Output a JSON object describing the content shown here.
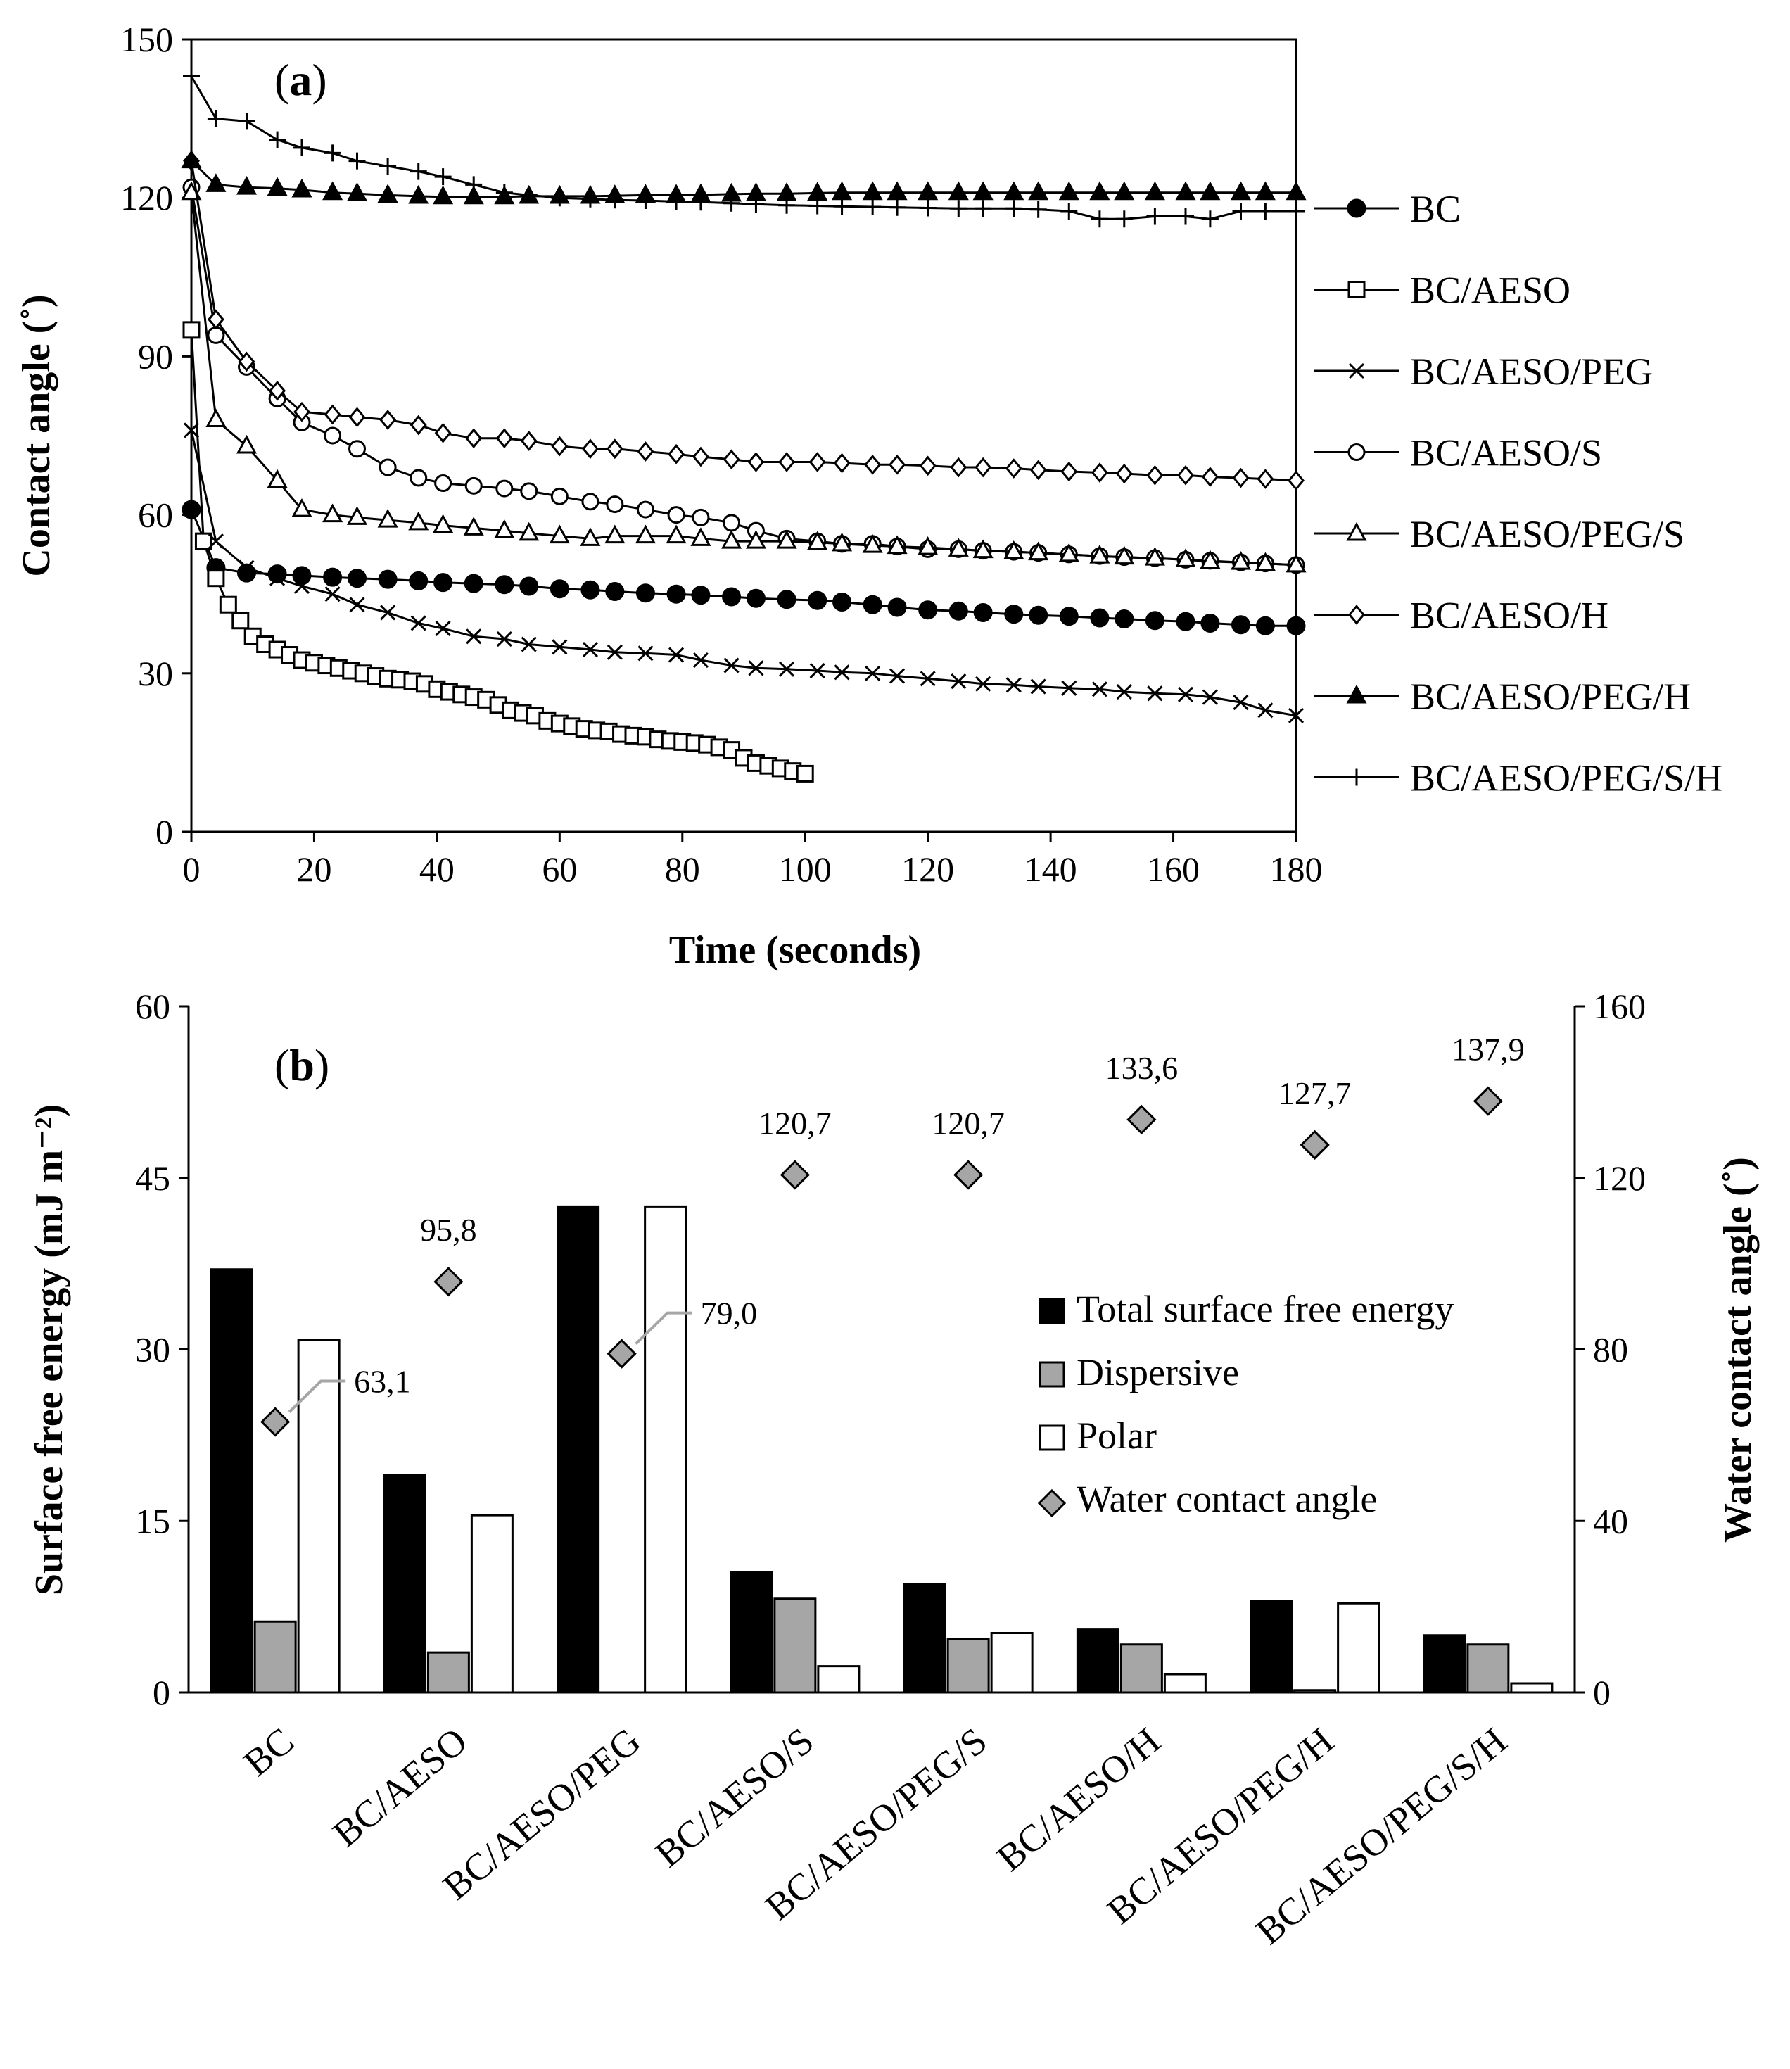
{
  "chart_data": [
    {
      "type": "line",
      "panel_label": "(a)",
      "panel_letter": "a",
      "xlabel": "Time (seconds)",
      "ylabel": "Contact angle (˚)",
      "xlim": [
        0,
        180
      ],
      "ylim": [
        0,
        150
      ],
      "xticks": [
        0,
        20,
        40,
        60,
        80,
        100,
        120,
        140,
        160,
        180
      ],
      "yticks": [
        0,
        30,
        60,
        90,
        120,
        150
      ],
      "legend_position": "right",
      "series": [
        {
          "name": "BC",
          "marker": "filled-circle",
          "x": [
            0,
            4,
            9,
            14,
            18,
            23,
            27,
            32,
            37,
            41,
            46,
            51,
            55,
            60,
            65,
            69,
            74,
            79,
            83,
            88,
            92,
            97,
            102,
            106,
            111,
            115,
            120,
            125,
            129,
            134,
            138,
            143,
            148,
            152,
            157,
            162,
            166,
            171,
            175,
            180
          ],
          "y": [
            61,
            50,
            49,
            48.8,
            48.5,
            48.2,
            48,
            47.8,
            47.5,
            47.2,
            47,
            46.8,
            46.5,
            46,
            45.8,
            45.5,
            45.2,
            45,
            44.8,
            44.5,
            44.2,
            44,
            43.8,
            43.5,
            43,
            42.5,
            42,
            41.8,
            41.5,
            41.2,
            41,
            40.8,
            40.5,
            40.3,
            40,
            39.8,
            39.5,
            39.2,
            39,
            39
          ]
        },
        {
          "name": "BC/AESO",
          "marker": "open-square",
          "x": [
            0,
            2,
            4,
            6,
            8,
            10,
            12,
            14,
            16,
            18,
            20,
            22,
            24,
            26,
            28,
            30,
            32,
            34,
            36,
            38,
            40,
            42,
            44,
            46,
            48,
            50,
            52,
            54,
            56,
            58,
            60,
            62,
            64,
            66,
            68,
            70,
            72,
            74,
            76,
            78,
            80,
            82,
            84,
            86,
            88,
            90,
            92,
            94,
            96,
            98,
            100
          ],
          "y": [
            95,
            55,
            48,
            43,
            40,
            37,
            35.5,
            34.5,
            33.5,
            32.5,
            32,
            31.5,
            31,
            30.5,
            30,
            29.5,
            29,
            28.8,
            28.5,
            28,
            27,
            26.5,
            26,
            25.5,
            25,
            24,
            23,
            22.5,
            22,
            21,
            20.5,
            20,
            19.5,
            19.2,
            19,
            18.5,
            18.2,
            18,
            17.5,
            17.2,
            17,
            16.8,
            16.5,
            16,
            15.5,
            14,
            13,
            12.5,
            12,
            11.5,
            11
          ]
        },
        {
          "name": "BC/AESO/PEG",
          "marker": "x",
          "x": [
            0,
            4,
            9,
            14,
            18,
            23,
            27,
            32,
            37,
            41,
            46,
            51,
            55,
            60,
            65,
            69,
            74,
            79,
            83,
            88,
            92,
            97,
            102,
            106,
            111,
            115,
            120,
            125,
            129,
            134,
            138,
            143,
            148,
            152,
            157,
            162,
            166,
            171,
            175,
            180
          ],
          "y": [
            76,
            55,
            50,
            48,
            46.5,
            45,
            43,
            41.5,
            39.5,
            38.5,
            37,
            36.5,
            35.5,
            35,
            34.5,
            34,
            33.8,
            33.5,
            32.5,
            31.5,
            31,
            30.8,
            30.5,
            30.2,
            30,
            29.5,
            29,
            28.5,
            28,
            27.8,
            27.5,
            27.2,
            27,
            26.5,
            26.2,
            26,
            25.5,
            24.5,
            23,
            22
          ]
        },
        {
          "name": "BC/AESO/S",
          "marker": "open-circle",
          "x": [
            0,
            4,
            9,
            14,
            18,
            23,
            27,
            32,
            37,
            41,
            46,
            51,
            55,
            60,
            65,
            69,
            74,
            79,
            83,
            88,
            92,
            97,
            102,
            106,
            111,
            115,
            120,
            125,
            129,
            134,
            138,
            143,
            148,
            152,
            157,
            162,
            166,
            171,
            175,
            180
          ],
          "y": [
            122,
            94,
            88,
            82,
            77.5,
            75,
            72.5,
            69,
            67,
            66,
            65.5,
            65,
            64.5,
            63.5,
            62.5,
            62,
            61,
            60,
            59.5,
            58.5,
            57,
            55.5,
            55,
            54.5,
            54.5,
            54,
            53.5,
            53.5,
            53.2,
            53,
            52.8,
            52.5,
            52.2,
            52,
            51.8,
            51.5,
            51.3,
            51,
            50.8,
            50.5
          ]
        },
        {
          "name": "BC/AESO/PEG/S",
          "marker": "open-triangle",
          "x": [
            0,
            4,
            9,
            14,
            18,
            23,
            27,
            32,
            37,
            41,
            46,
            51,
            55,
            60,
            65,
            69,
            74,
            79,
            83,
            88,
            92,
            97,
            102,
            106,
            111,
            115,
            120,
            125,
            129,
            134,
            138,
            143,
            148,
            152,
            157,
            162,
            166,
            171,
            175,
            180
          ],
          "y": [
            121,
            78,
            73,
            66.5,
            61,
            60,
            59.5,
            59,
            58.5,
            58,
            57.5,
            57,
            56.5,
            56,
            55.5,
            56,
            56,
            56,
            55.5,
            55,
            55,
            55,
            54.8,
            54.5,
            54.2,
            54,
            53.8,
            53.5,
            53.2,
            53,
            52.8,
            52.5,
            52.2,
            52,
            51.8,
            51.5,
            51.2,
            51,
            50.8,
            50.5
          ]
        },
        {
          "name": "BC/AESO/H",
          "marker": "open-diamond",
          "x": [
            0,
            4,
            9,
            14,
            18,
            23,
            27,
            32,
            37,
            41,
            46,
            51,
            55,
            60,
            65,
            69,
            74,
            79,
            83,
            88,
            92,
            97,
            102,
            106,
            111,
            115,
            120,
            125,
            129,
            134,
            138,
            143,
            148,
            152,
            157,
            162,
            166,
            171,
            175,
            180
          ],
          "y": [
            127,
            97,
            89,
            83.5,
            79.5,
            79,
            78.5,
            78,
            77,
            75.5,
            74.5,
            74.5,
            74,
            73,
            72.5,
            72.5,
            72,
            71.5,
            71,
            70.5,
            70,
            70,
            70,
            69.8,
            69.5,
            69.5,
            69.3,
            69,
            69,
            68.8,
            68.5,
            68.2,
            68,
            67.8,
            67.5,
            67.5,
            67.2,
            67,
            66.8,
            66.5
          ]
        },
        {
          "name": "BC/AESO/PEG/H",
          "marker": "filled-triangle",
          "x": [
            0,
            4,
            9,
            14,
            18,
            23,
            27,
            32,
            37,
            41,
            46,
            51,
            55,
            60,
            65,
            69,
            74,
            79,
            83,
            88,
            92,
            97,
            102,
            106,
            111,
            115,
            120,
            125,
            129,
            134,
            138,
            143,
            148,
            152,
            157,
            162,
            166,
            171,
            175,
            180
          ],
          "y": [
            127,
            122.5,
            122,
            121.8,
            121.5,
            121,
            120.8,
            120.5,
            120.3,
            120.2,
            120.2,
            120.2,
            120.3,
            120.3,
            120.3,
            120.4,
            120.5,
            120.5,
            120.6,
            120.7,
            120.8,
            120.8,
            120.9,
            121,
            121,
            121,
            121,
            121,
            121,
            121,
            121,
            121,
            121,
            121,
            121,
            121,
            121,
            121,
            121,
            121
          ]
        },
        {
          "name": "BC/AESO/PEG/S/H",
          "marker": "plus",
          "x": [
            0,
            4,
            9,
            14,
            18,
            23,
            27,
            32,
            37,
            41,
            46,
            51,
            55,
            60,
            65,
            69,
            74,
            79,
            83,
            88,
            92,
            97,
            102,
            106,
            111,
            115,
            120,
            125,
            129,
            134,
            138,
            143,
            148,
            152,
            157,
            162,
            166,
            171,
            175,
            180
          ],
          "y": [
            143,
            135,
            134.5,
            131,
            129.5,
            128.5,
            127,
            126,
            125,
            124,
            122.5,
            121,
            120.5,
            120,
            119.8,
            119.6,
            119.5,
            119.3,
            119.2,
            119,
            118.8,
            118.6,
            118.5,
            118.4,
            118.3,
            118.2,
            118.1,
            118,
            118,
            118,
            117.8,
            117.5,
            116,
            116,
            116.5,
            116.5,
            116,
            117.5,
            117.5,
            117.5
          ]
        }
      ]
    },
    {
      "type": "bar",
      "panel_label": "(b)",
      "panel_letter": "b",
      "ylabel": "Surface free energy (mJ m⁻²)",
      "y2label": "Water contact angle (˚)",
      "ylim": [
        0,
        60
      ],
      "yticks": [
        0,
        15,
        30,
        45,
        60
      ],
      "y2lim": [
        0,
        160
      ],
      "y2ticks": [
        0,
        40,
        80,
        120,
        160
      ],
      "legend_position": "center-right",
      "categories": [
        "BC",
        "BC/AESO",
        "BC/AESO/PEG",
        "BC/AESO/S",
        "BC/AESO/PEG/S",
        "BC/AESO/H",
        "BC/AESO/PEG/H",
        "BC/AESO/PEG/S/H"
      ],
      "series": [
        {
          "name": "Total surface free energy",
          "color": "#000000",
          "values": [
            37,
            19,
            42.5,
            10.5,
            9.5,
            5.5,
            8,
            5
          ]
        },
        {
          "name": "Dispersive",
          "color": "#a6a6a6",
          "values": [
            6.2,
            3.5,
            0,
            8.2,
            4.7,
            4.2,
            0.2,
            4.2
          ]
        },
        {
          "name": "Polar",
          "color": "#ffffff",
          "values": [
            30.8,
            15.5,
            42.5,
            2.3,
            5.2,
            1.6,
            7.8,
            0.8
          ]
        }
      ],
      "scatter_series": {
        "name": "Water contact angle",
        "axis": "right",
        "color": "#a6a6a6",
        "values": [
          63.1,
          95.8,
          79.0,
          120.7,
          120.7,
          133.6,
          127.7,
          137.9
        ],
        "labels": [
          "63,1",
          "95,8",
          "79,0",
          "120,7",
          "120,7",
          "133,6",
          "127,7",
          "137,9"
        ]
      }
    }
  ]
}
